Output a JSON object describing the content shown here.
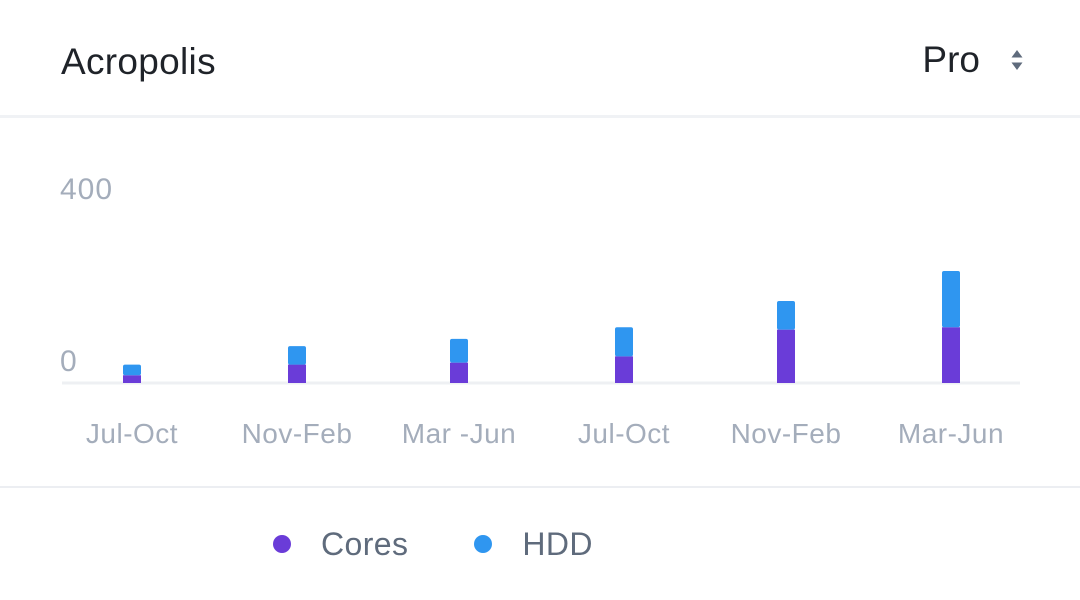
{
  "header": {
    "title": "Acropolis",
    "select_value": "Pro",
    "select_icon": "sort-arrows-icon"
  },
  "colors": {
    "cores": "#6a3cd8",
    "hdd": "#2f96f0",
    "axis_text": "#a4adbb",
    "baseline": "#eef0f3"
  },
  "chart_data": {
    "type": "bar",
    "stacked": true,
    "categories": [
      "Jul-Oct",
      "Nov-Feb",
      "Mar -Jun",
      "Jul-Oct",
      "Nov-Feb",
      "Mar-Jun"
    ],
    "series": [
      {
        "name": "Cores",
        "values": [
          16,
          38,
          42,
          55,
          110,
          115
        ]
      },
      {
        "name": "HDD",
        "values": [
          22,
          38,
          49,
          60,
          59,
          116
        ]
      }
    ],
    "yticks": [
      "0",
      "400"
    ],
    "ylim": [
      0,
      400
    ],
    "grid": false,
    "legend": "bottom"
  }
}
